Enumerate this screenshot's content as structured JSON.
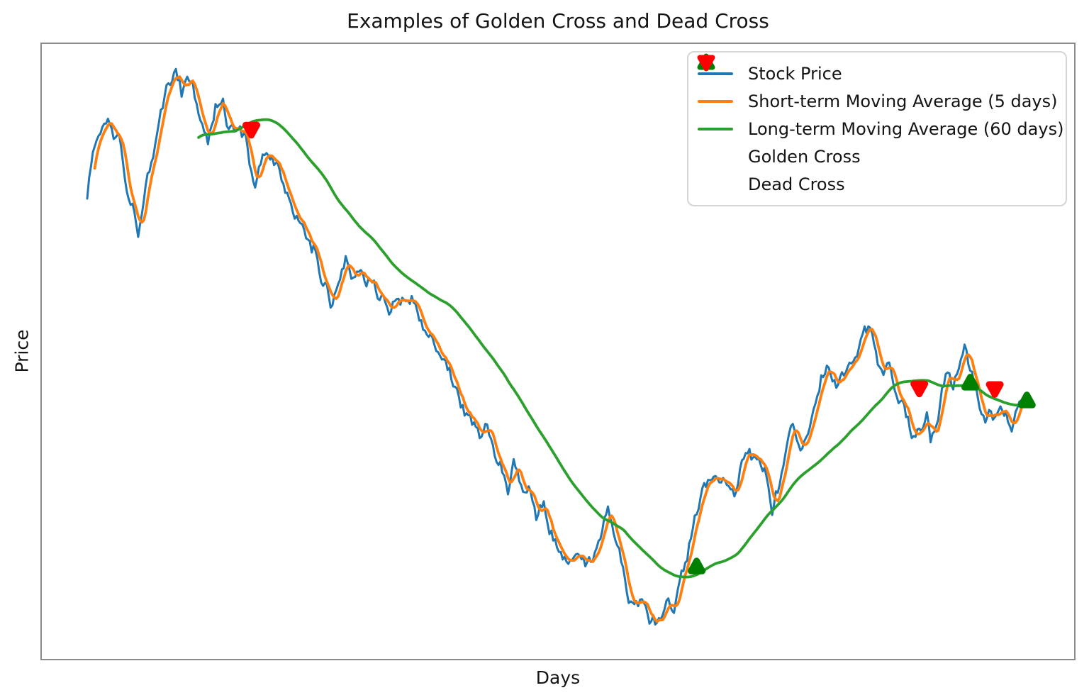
{
  "title": "Examples of Golden Cross and Dead Cross",
  "xlabel": "Days",
  "ylabel": "Price",
  "legend": [
    {
      "label": "Stock Price",
      "type": "line",
      "color": "#1f77b4"
    },
    {
      "label": "Short-term Moving Average (5 days)",
      "type": "line",
      "color": "#ff7f0e"
    },
    {
      "label": "Long-term Moving Average (60 days)",
      "type": "line",
      "color": "#2ca02c"
    },
    {
      "label": "Golden Cross",
      "type": "triangle-up",
      "color": "#008000"
    },
    {
      "label": "Dead Cross",
      "type": "triangle-down",
      "color": "#ff0000"
    }
  ],
  "chart_data": {
    "type": "line",
    "title": "Examples of Golden Cross and Dead Cross",
    "xlabel": "Days",
    "ylabel": "Price",
    "x_domain": [
      0,
      499
    ],
    "y_domain": [
      0,
      100
    ],
    "grid": false,
    "ticks": "none",
    "legend_position": "upper right",
    "frame_color": "#8a8a8a",
    "noise": {
      "seed": 1337,
      "persistence": 0.7,
      "amplitude": 1.25
    },
    "series": [
      {
        "name": "Stock Price",
        "color": "#1f77b4",
        "line_width": 3,
        "keypoints": [
          [
            0,
            78.5
          ],
          [
            3,
            85.8
          ],
          [
            7,
            89.6
          ],
          [
            11,
            92.6
          ],
          [
            14,
            89.0
          ],
          [
            17,
            91.3
          ],
          [
            21,
            80.7
          ],
          [
            27,
            72.2
          ],
          [
            31,
            81.3
          ],
          [
            36,
            88.4
          ],
          [
            42,
            96.0
          ],
          [
            47,
            100.0
          ],
          [
            50,
            96.7
          ],
          [
            53,
            99.8
          ],
          [
            56,
            97.9
          ],
          [
            60,
            90.9
          ],
          [
            64,
            87.1
          ],
          [
            68,
            93.5
          ],
          [
            72,
            95.4
          ],
          [
            75,
            90.3
          ],
          [
            80,
            89.0
          ],
          [
            84,
            87.7
          ],
          [
            87,
            82.0
          ],
          [
            89,
            79.8
          ],
          [
            93,
            83.9
          ],
          [
            96,
            85.2
          ],
          [
            101,
            82.6
          ],
          [
            105,
            78.9
          ],
          [
            109,
            74.3
          ],
          [
            114,
            71.1
          ],
          [
            120,
            68.6
          ],
          [
            125,
            62.8
          ],
          [
            129,
            59.0
          ],
          [
            133,
            63.5
          ],
          [
            137,
            67.9
          ],
          [
            141,
            63.5
          ],
          [
            145,
            66.0
          ],
          [
            148,
            62.2
          ],
          [
            152,
            64.1
          ],
          [
            156,
            60.3
          ],
          [
            160,
            57.1
          ],
          [
            164,
            60.3
          ],
          [
            168,
            58.4
          ],
          [
            172,
            59.7
          ],
          [
            176,
            55.8
          ],
          [
            180,
            53.9
          ],
          [
            184,
            52.0
          ],
          [
            188,
            48.2
          ],
          [
            192,
            46.3
          ],
          [
            196,
            42.4
          ],
          [
            200,
            39.2
          ],
          [
            204,
            36.7
          ],
          [
            208,
            34.8
          ],
          [
            211,
            36.0
          ],
          [
            215,
            33.5
          ],
          [
            219,
            30.9
          ],
          [
            223,
            24.6
          ],
          [
            226,
            29.7
          ],
          [
            229,
            25.8
          ],
          [
            232,
            22.6
          ],
          [
            235,
            25.2
          ],
          [
            238,
            19.1
          ],
          [
            242,
            21.4
          ],
          [
            245,
            18.2
          ],
          [
            250,
            15.2
          ],
          [
            254,
            11.8
          ],
          [
            259,
            14.0
          ],
          [
            264,
            10.4
          ],
          [
            269,
            12.2
          ],
          [
            273,
            15.2
          ],
          [
            276,
            21.9
          ],
          [
            280,
            17.8
          ],
          [
            283,
            13.0
          ],
          [
            287,
            6.6
          ],
          [
            292,
            5.0
          ],
          [
            296,
            3.3
          ],
          [
            301,
            1.6
          ],
          [
            305,
            0.3
          ],
          [
            308,
            5.4
          ],
          [
            311,
            3.3
          ],
          [
            314,
            8.0
          ],
          [
            317,
            12.7
          ],
          [
            320,
            17.3
          ],
          [
            323,
            21.1
          ],
          [
            326,
            23.9
          ],
          [
            329,
            25.7
          ],
          [
            333,
            25.2
          ],
          [
            337,
            25.8
          ],
          [
            341,
            23.9
          ],
          [
            344,
            25.2
          ],
          [
            349,
            32.9
          ],
          [
            353,
            30.9
          ],
          [
            358,
            29.7
          ],
          [
            361,
            26.5
          ],
          [
            363,
            20.1
          ],
          [
            367,
            25.2
          ],
          [
            371,
            31.6
          ],
          [
            374,
            34.1
          ],
          [
            378,
            32.2
          ],
          [
            382,
            34.1
          ],
          [
            386,
            41.8
          ],
          [
            389,
            47.5
          ],
          [
            393,
            47.9
          ],
          [
            397,
            45.6
          ],
          [
            401,
            45.0
          ],
          [
            404,
            47.5
          ],
          [
            408,
            49.4
          ],
          [
            412,
            52.0
          ],
          [
            415,
            53.5
          ],
          [
            419,
            48.8
          ],
          [
            422,
            45.9
          ],
          [
            425,
            47.9
          ],
          [
            428,
            43.1
          ],
          [
            431,
            41.1
          ],
          [
            434,
            38.0
          ],
          [
            437,
            34.1
          ],
          [
            439,
            33.1
          ],
          [
            442,
            36.0
          ],
          [
            445,
            38.6
          ],
          [
            447,
            34.4
          ],
          [
            450,
            36.9
          ],
          [
            453,
            41.5
          ],
          [
            456,
            45.9
          ],
          [
            459,
            43.3
          ],
          [
            462,
            47.9
          ],
          [
            465,
            51.0
          ],
          [
            467,
            46.9
          ],
          [
            470,
            43.3
          ],
          [
            473,
            40.3
          ],
          [
            476,
            37.3
          ],
          [
            478,
            41.5
          ],
          [
            481,
            39.2
          ],
          [
            484,
            42.3
          ],
          [
            487,
            39.9
          ],
          [
            490,
            38.6
          ],
          [
            492,
            41.5
          ],
          [
            495,
            43.6
          ],
          [
            498,
            41.8
          ],
          [
            499,
            40.3
          ]
        ]
      },
      {
        "name": "Short-term Moving Average (5 days)",
        "color": "#ff7f0e",
        "line_width": 3.8,
        "derived_from": "Stock Price",
        "rolling_window": 5
      },
      {
        "name": "Long-term Moving Average (60 days)",
        "color": "#2ca02c",
        "line_width": 3.8,
        "derived_from": "Stock Price",
        "rolling_window": 60
      }
    ],
    "golden_crosses": [
      {
        "day": 323,
        "price": 11.2
      },
      {
        "day": 468,
        "price": 44.3
      },
      {
        "day": 498,
        "price": 41.1
      }
    ],
    "dead_crosses": [
      {
        "day": 87,
        "price": 90.0
      },
      {
        "day": 441,
        "price": 43.4
      },
      {
        "day": 481,
        "price": 43.3
      }
    ]
  }
}
